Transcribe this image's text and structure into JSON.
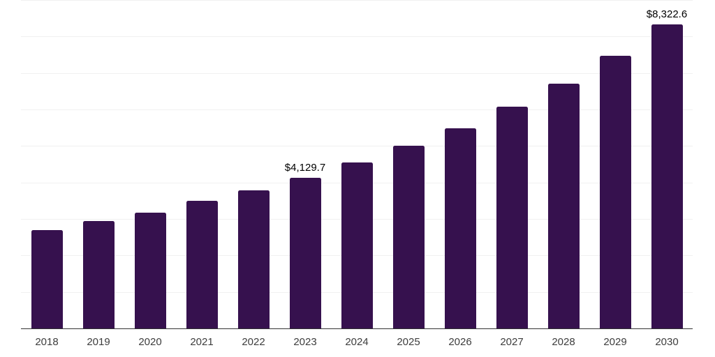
{
  "chart_data": {
    "type": "bar",
    "title": "",
    "xlabel": "",
    "ylabel": "",
    "categories": [
      "2018",
      "2019",
      "2020",
      "2021",
      "2022",
      "2023",
      "2024",
      "2025",
      "2026",
      "2027",
      "2028",
      "2029",
      "2030"
    ],
    "values": [
      2700,
      2940,
      3180,
      3490,
      3780,
      4129.7,
      4550,
      5000,
      5490,
      6080,
      6710,
      7480,
      8322.6
    ],
    "data_labels": [
      "",
      "",
      "",
      "",
      "",
      "$4,129.7",
      "",
      "",
      "",
      "",
      "",
      "",
      "$8,322.6"
    ],
    "ylim": [
      0,
      9000
    ],
    "gridline_step": 1000,
    "grid": "horizontal-only",
    "legend": "none",
    "y_axis_labels_visible": false,
    "colors": {
      "bar": "#36114E",
      "background": "#FFFFFF",
      "gridline": "#F0F0F0",
      "axis_line": "#333333",
      "tick_label": "#3D3D3D",
      "data_label": "#000000"
    }
  }
}
